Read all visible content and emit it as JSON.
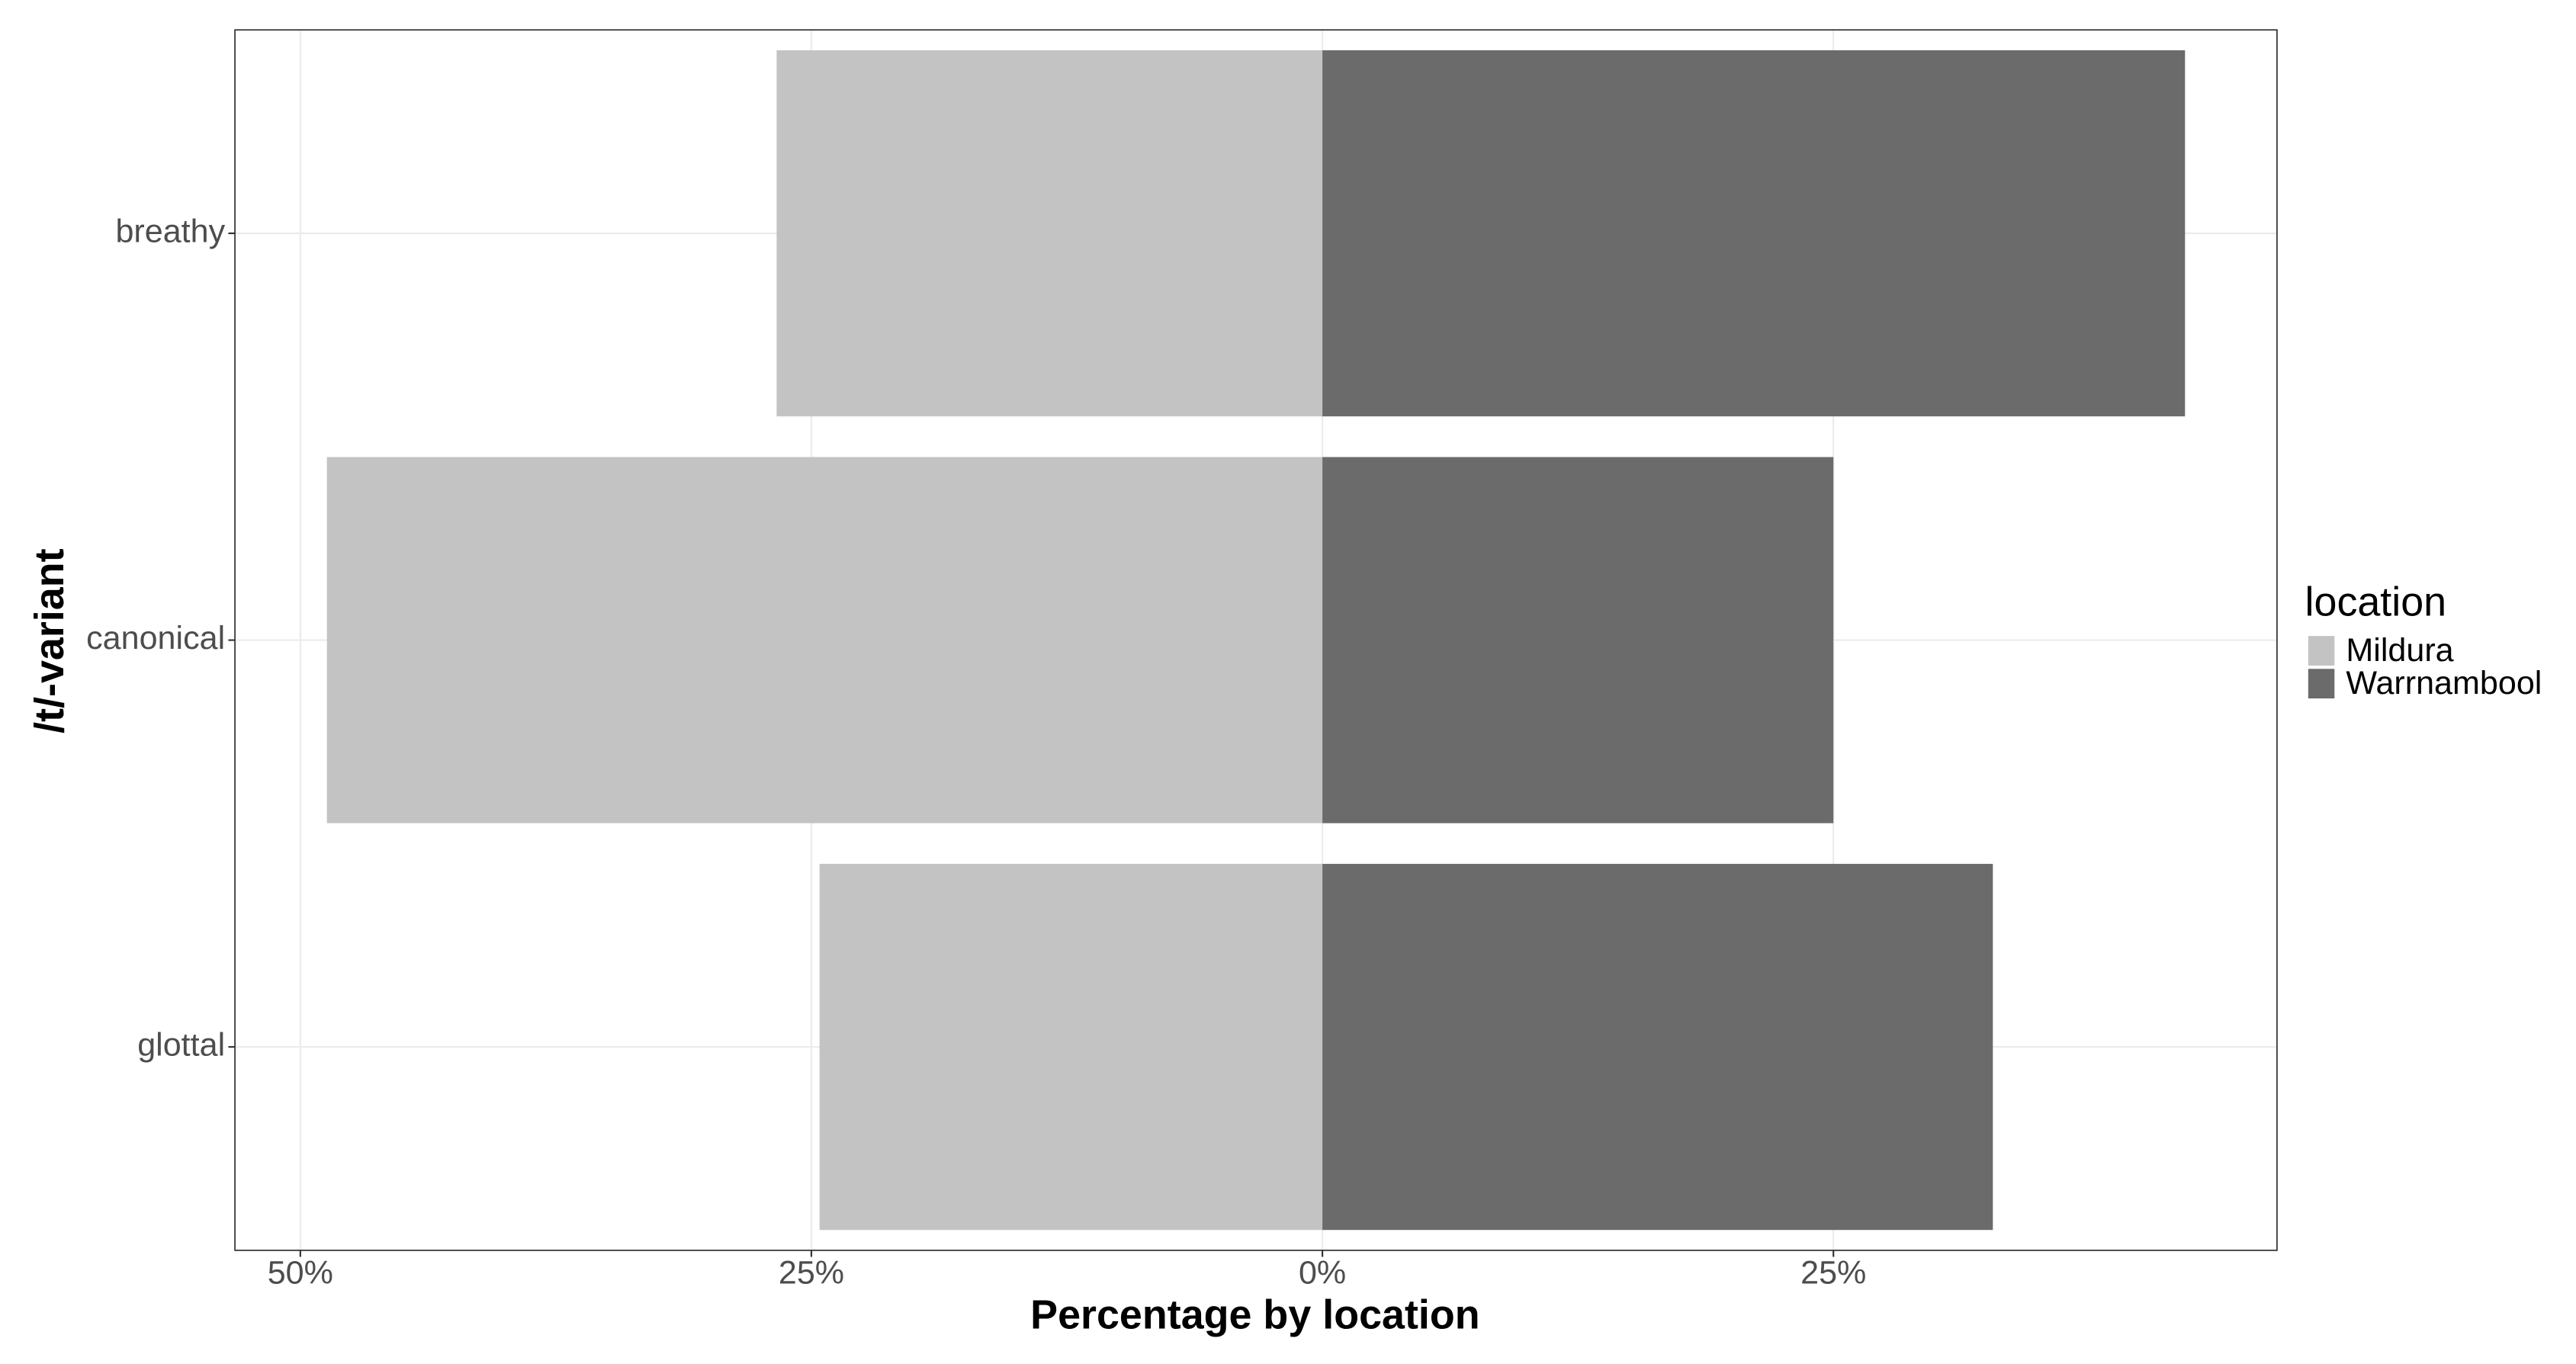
{
  "chart_data": {
    "type": "bar",
    "orientation": "horizontal",
    "stacked": true,
    "x_label": "Percentage by location",
    "y_label": "/t/-variant",
    "categories": [
      "breathy",
      "canonical",
      "glottal"
    ],
    "series": [
      {
        "name": "Mildura",
        "color": "#c3c3c3",
        "values": [
          -26.7,
          -48.7,
          -24.6
        ]
      },
      {
        "name": "Warrnambool",
        "color": "#6b6b6b",
        "values": [
          42.2,
          25.0,
          32.8
        ]
      }
    ],
    "xlim": [
      -53.2,
      46.7
    ],
    "xticks": [
      {
        "value": -50,
        "label": "50%"
      },
      {
        "value": -25,
        "label": "25%"
      },
      {
        "value": 0,
        "label": "0%"
      },
      {
        "value": 25,
        "label": "25%"
      }
    ],
    "grid": true,
    "legend_title": "location",
    "legend_position": "right"
  }
}
